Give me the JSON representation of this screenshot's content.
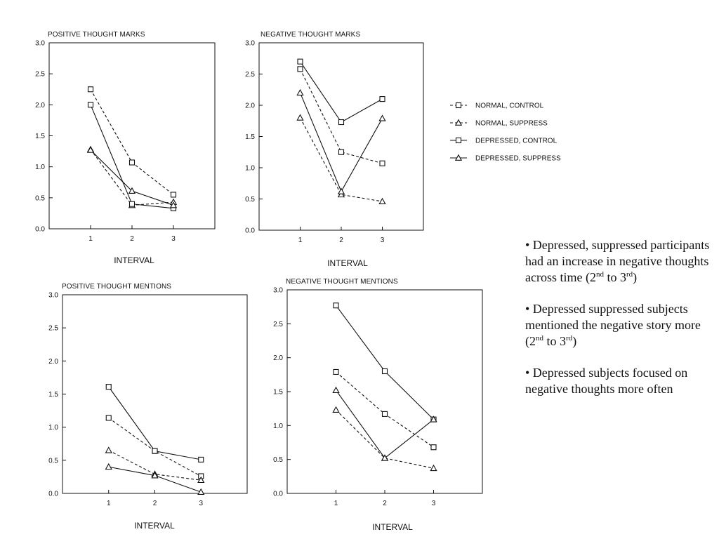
{
  "chart_data": [
    {
      "type": "line",
      "title": "POSITIVE THOUGHT MARKS",
      "xlabel": "INTERVAL",
      "ylabel": "",
      "ylim": [
        0,
        3
      ],
      "xlim": [
        0,
        4
      ],
      "x": [
        1,
        2,
        3
      ],
      "xticks": [
        1,
        2,
        3
      ],
      "yticks": [
        "0.0",
        "0.5",
        "1.0",
        "1.5",
        "2.0",
        "2.5",
        "3.0"
      ],
      "grid": false,
      "series": [
        {
          "name": "NORMAL, CONTROL",
          "values": [
            2.25,
            1.07,
            0.55
          ]
        },
        {
          "name": "NORMAL, SUPPRESS",
          "values": [
            1.28,
            0.38,
            0.43
          ]
        },
        {
          "name": "DEPRESSED, CONTROL",
          "values": [
            2.0,
            0.4,
            0.33
          ]
        },
        {
          "name": "DEPRESSED, SUPPRESS",
          "values": [
            1.27,
            0.61,
            0.38
          ]
        }
      ]
    },
    {
      "type": "line",
      "title": "NEGATIVE THOUGHT MARKS",
      "xlabel": "INTERVAL",
      "ylabel": "",
      "ylim": [
        0,
        3
      ],
      "xlim": [
        0,
        4
      ],
      "x": [
        1,
        2,
        3
      ],
      "xticks": [
        1,
        2,
        3
      ],
      "yticks": [
        "0.0",
        "0.5",
        "1.0",
        "1.5",
        "2.0",
        "2.5",
        "3.0"
      ],
      "grid": false,
      "series": [
        {
          "name": "NORMAL, CONTROL",
          "values": [
            2.58,
            1.25,
            1.07
          ]
        },
        {
          "name": "NORMAL, SUPPRESS",
          "values": [
            1.8,
            0.57,
            0.46
          ]
        },
        {
          "name": "DEPRESSED, CONTROL",
          "values": [
            2.7,
            1.73,
            2.1
          ]
        },
        {
          "name": "DEPRESSED, SUPPRESS",
          "values": [
            2.2,
            0.62,
            1.79
          ]
        }
      ]
    },
    {
      "type": "line",
      "title": "POSITIVE THOUGHT MENTIONS",
      "xlabel": "INTERVAL",
      "ylabel": "",
      "ylim": [
        0,
        3
      ],
      "xlim": [
        0,
        4
      ],
      "x": [
        1,
        2,
        3
      ],
      "xticks": [
        1,
        2,
        3
      ],
      "yticks": [
        "0.0",
        "0.5",
        "1.0",
        "1.5",
        "2.0",
        "2.5",
        "3.0"
      ],
      "grid": false,
      "series": [
        {
          "name": "NORMAL, CONTROL",
          "values": [
            1.14,
            0.64,
            0.26
          ]
        },
        {
          "name": "NORMAL, SUPPRESS",
          "values": [
            0.65,
            0.29,
            0.2
          ]
        },
        {
          "name": "DEPRESSED, CONTROL",
          "values": [
            1.61,
            0.64,
            0.51
          ]
        },
        {
          "name": "DEPRESSED, SUPPRESS",
          "values": [
            0.4,
            0.27,
            0.02
          ]
        }
      ]
    },
    {
      "type": "line",
      "title": "NEGATIVE THOUGHT MENTIONS",
      "xlabel": "INTERVAL",
      "ylabel": "",
      "ylim": [
        0,
        3
      ],
      "xlim": [
        0,
        4
      ],
      "x": [
        1,
        2,
        3
      ],
      "xticks": [
        1,
        2,
        3
      ],
      "yticks": [
        "0.0",
        "0.5",
        "1.0",
        "1.5",
        "2.0",
        "2.5",
        "3.0"
      ],
      "grid": false,
      "series": [
        {
          "name": "NORMAL, CONTROL",
          "values": [
            1.79,
            1.17,
            0.68
          ]
        },
        {
          "name": "NORMAL, SUPPRESS",
          "values": [
            1.23,
            0.52,
            0.37
          ]
        },
        {
          "name": "DEPRESSED, CONTROL",
          "values": [
            2.77,
            1.8,
            1.09
          ]
        },
        {
          "name": "DEPRESSED, SUPPRESS",
          "values": [
            1.52,
            0.52,
            1.09
          ]
        }
      ]
    }
  ],
  "legend": {
    "placement": "right",
    "items": [
      {
        "label": "NORMAL, CONTROL",
        "marker": "square",
        "line": "dashed"
      },
      {
        "label": "NORMAL, SUPPRESS",
        "marker": "triangle",
        "line": "dashed"
      },
      {
        "label": "DEPRESSED, CONTROL",
        "marker": "square",
        "line": "solid"
      },
      {
        "label": "DEPRESSED, SUPPRESS",
        "marker": "triangle",
        "line": "solid"
      }
    ]
  },
  "bullets": [
    {
      "parts": [
        "• Depressed, suppressed participants had an increase in negative thoughts across time (2",
        "nd",
        " to 3",
        "rd",
        ")"
      ]
    },
    {
      "parts": [
        "• Depressed suppressed subjects mentioned the negative story more (2",
        "nd",
        " to 3",
        "rd",
        ")"
      ]
    },
    {
      "parts": [
        "• Depressed subjects focused on negative thoughts more often"
      ]
    }
  ]
}
